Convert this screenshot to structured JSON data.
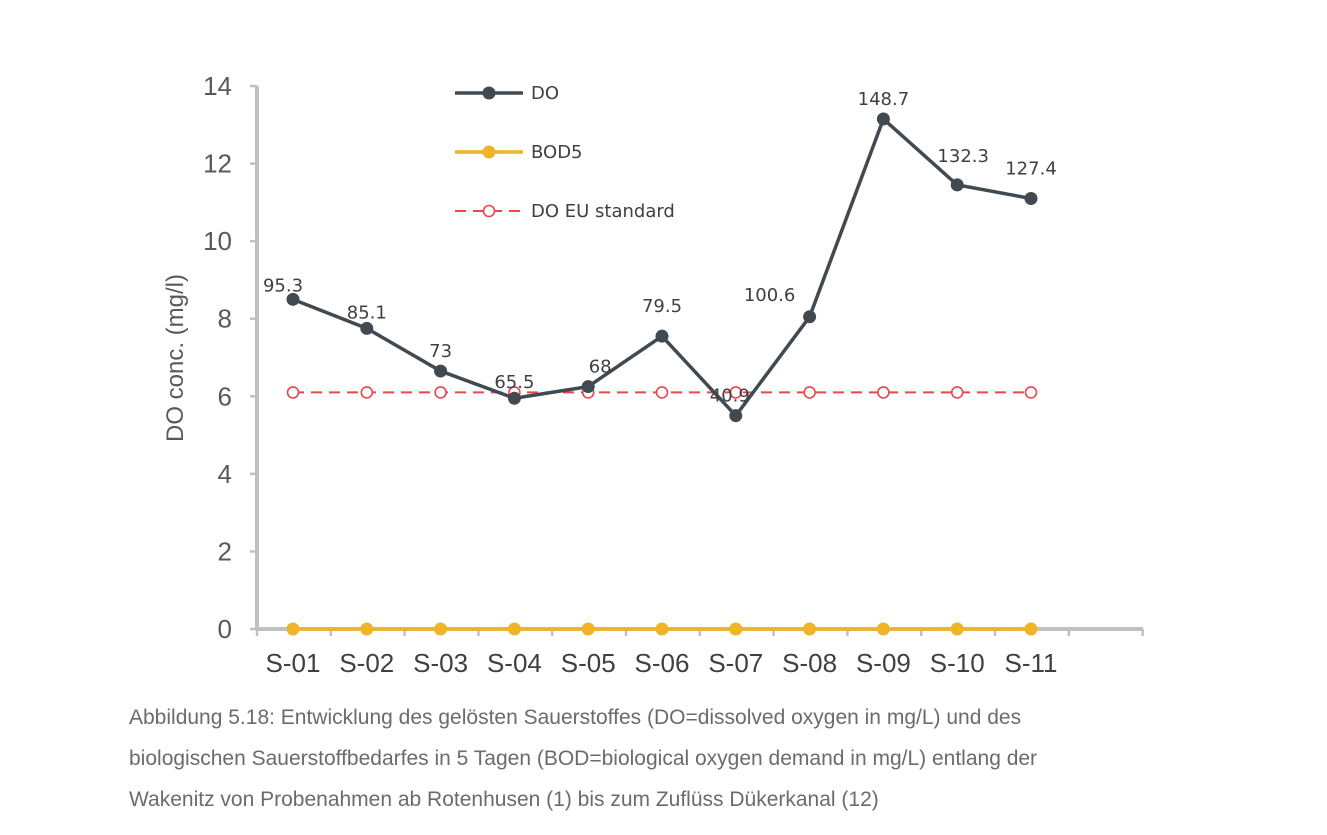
{
  "chart_data": {
    "type": "line",
    "categories": [
      "S-01",
      "S-02",
      "S-03",
      "S-04",
      "S-05",
      "S-06",
      "S-07",
      "S-08",
      "S-09",
      "S-10",
      "S-11"
    ],
    "ylabel": "DO conc. (mg/l)",
    "xlabel": "",
    "ylim": [
      0,
      14
    ],
    "yticks": [
      "0",
      "2",
      "4",
      "6",
      "8",
      "10",
      "12",
      "14"
    ],
    "grid": false,
    "legend_position": "top",
    "series": [
      {
        "name": "DO",
        "color": "#404a50",
        "marker": "filled-circle",
        "line": "solid",
        "values": [
          8.5,
          7.75,
          6.65,
          5.95,
          6.25,
          7.55,
          5.5,
          8.05,
          13.15,
          11.45,
          11.1
        ],
        "data_labels": [
          "95.3",
          "85.1",
          "73",
          "65.5",
          "68",
          "79.5",
          "40.9",
          "100.6",
          "148.7",
          "132.3",
          "127.4"
        ]
      },
      {
        "name": "BOD5",
        "color": "#f0b429",
        "marker": "filled-circle",
        "line": "solid",
        "values": [
          0,
          0,
          0,
          0,
          0,
          0,
          0,
          0,
          0,
          0,
          0
        ]
      },
      {
        "name": "DO EU standard",
        "color": "#e8474c",
        "marker": "open-circle",
        "line": "dashed",
        "values": [
          6.1,
          6.1,
          6.1,
          6.1,
          6.1,
          6.1,
          6.1,
          6.1,
          6.1,
          6.1,
          6.1
        ]
      }
    ]
  },
  "caption": {
    "line1": "Abbildung 5.18: Entwicklung des gelösten Sauerstoffes (DO=dissolved oxygen in mg/L) und des",
    "line2": "biologischen Sauerstoffbedarfes in 5 Tagen (BOD=biological oxygen demand in mg/L) entlang der",
    "line3": "Wakenitz von Probenahmen ab Rotenhusen (1) bis zum Zuflüss Dükerkanal (12)"
  }
}
